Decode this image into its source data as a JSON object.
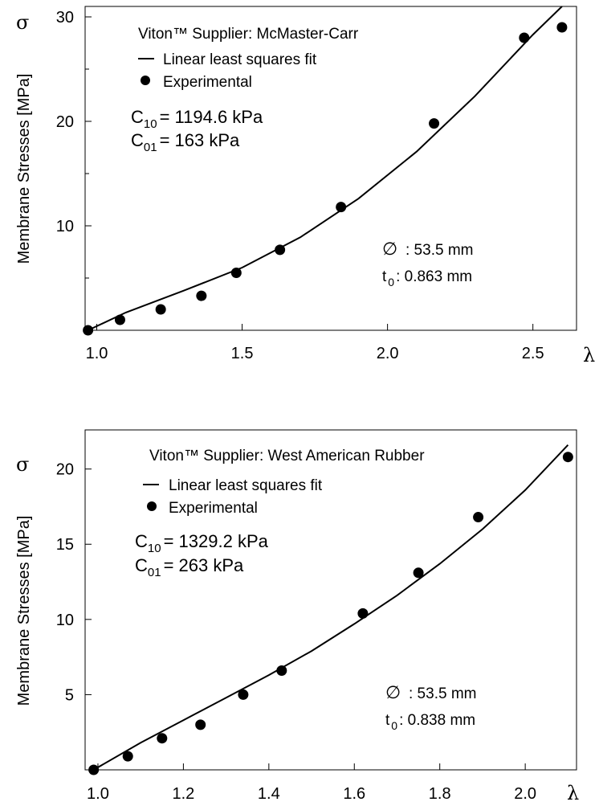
{
  "chart_data": [
    {
      "type": "scatter",
      "title": "",
      "xlabel": "λ",
      "ylabel": "Membrane Stresses [MPa]",
      "y_symbol": "σ",
      "xlim": [
        0.96,
        2.65
      ],
      "ylim": [
        0,
        31
      ],
      "x_ticks": [
        1.0,
        1.5,
        2.0,
        2.5
      ],
      "x_tick_labels": [
        "1.0",
        "1.5",
        "2.0",
        "2.5"
      ],
      "y_ticks": [
        10,
        20,
        30
      ],
      "y_tick_labels": [
        "10",
        "20",
        "30"
      ],
      "y_minor_ticks": [
        5,
        15,
        25
      ],
      "legend": {
        "heading": "Viton™ Supplier: McMaster-Carr",
        "fit_label": "Linear least squares fit",
        "points_label": "Experimental"
      },
      "params": {
        "c10_sym": "C",
        "c10_sub": "10",
        "c10_value": "= 1194.6 kPa",
        "c01_sym": "C",
        "c01_sub": "01",
        "c01_value": "= 163 kPa"
      },
      "specimen": {
        "diameter_symbol": "∅",
        "diameter_text": ": 53.5 mm",
        "thickness_sym": "t",
        "thickness_sub": "0",
        "thickness_text": ": 0.863 mm"
      },
      "series": [
        {
          "name": "Experimental",
          "kind": "points",
          "x": [
            0.97,
            1.08,
            1.22,
            1.36,
            1.48,
            1.63,
            1.84,
            2.16,
            2.47,
            2.6
          ],
          "y": [
            0.0,
            1.0,
            2.0,
            3.3,
            5.5,
            7.7,
            11.8,
            19.8,
            28.0,
            29.0
          ]
        },
        {
          "name": "Linear least squares fit",
          "kind": "line",
          "x": [
            0.97,
            1.1,
            1.3,
            1.5,
            1.7,
            1.9,
            2.1,
            2.3,
            2.5,
            2.6
          ],
          "y": [
            0.0,
            1.7,
            3.8,
            6.0,
            8.9,
            12.6,
            17.1,
            22.4,
            28.3,
            31.0
          ]
        }
      ]
    },
    {
      "type": "scatter",
      "title": "",
      "xlabel": "λ",
      "ylabel": "Membrane Stresses [MPa]",
      "y_symbol": "σ",
      "xlim": [
        0.97,
        2.12
      ],
      "ylim": [
        0,
        22.6
      ],
      "x_ticks": [
        1.0,
        1.2,
        1.4,
        1.6,
        1.8,
        2.0
      ],
      "x_tick_labels": [
        "1.0",
        "1.2",
        "1.4",
        "1.6",
        "1.8",
        "2.0"
      ],
      "y_ticks": [
        5,
        10,
        15,
        20
      ],
      "y_tick_labels": [
        "5",
        "10",
        "15",
        "20"
      ],
      "legend": {
        "heading": "Viton™ Supplier:  West American Rubber",
        "fit_label": "Linear least squares fit",
        "points_label": "Experimental"
      },
      "params": {
        "c10_sym": "C",
        "c10_sub": "10",
        "c10_value": "= 1329.2 kPa",
        "c01_sym": "C",
        "c01_sub": "01",
        "c01_value": "= 263 kPa"
      },
      "specimen": {
        "diameter_symbol": "∅",
        "diameter_text": ": 53.5 mm",
        "thickness_sym": "t",
        "thickness_sub": "0",
        "thickness_text": ": 0.838 mm"
      },
      "series": [
        {
          "name": "Experimental",
          "kind": "points",
          "x": [
            0.99,
            1.07,
            1.15,
            1.24,
            1.34,
            1.43,
            1.62,
            1.75,
            1.89,
            2.1
          ],
          "y": [
            0.0,
            0.9,
            2.1,
            3.0,
            5.0,
            6.6,
            10.4,
            13.1,
            16.8,
            20.8
          ]
        },
        {
          "name": "Linear least squares fit",
          "kind": "line",
          "x": [
            0.99,
            1.1,
            1.2,
            1.3,
            1.4,
            1.5,
            1.6,
            1.7,
            1.8,
            1.9,
            2.0,
            2.1
          ],
          "y": [
            0.0,
            1.8,
            3.3,
            4.8,
            6.3,
            7.9,
            9.7,
            11.6,
            13.7,
            16.0,
            18.6,
            21.6
          ]
        }
      ]
    }
  ]
}
